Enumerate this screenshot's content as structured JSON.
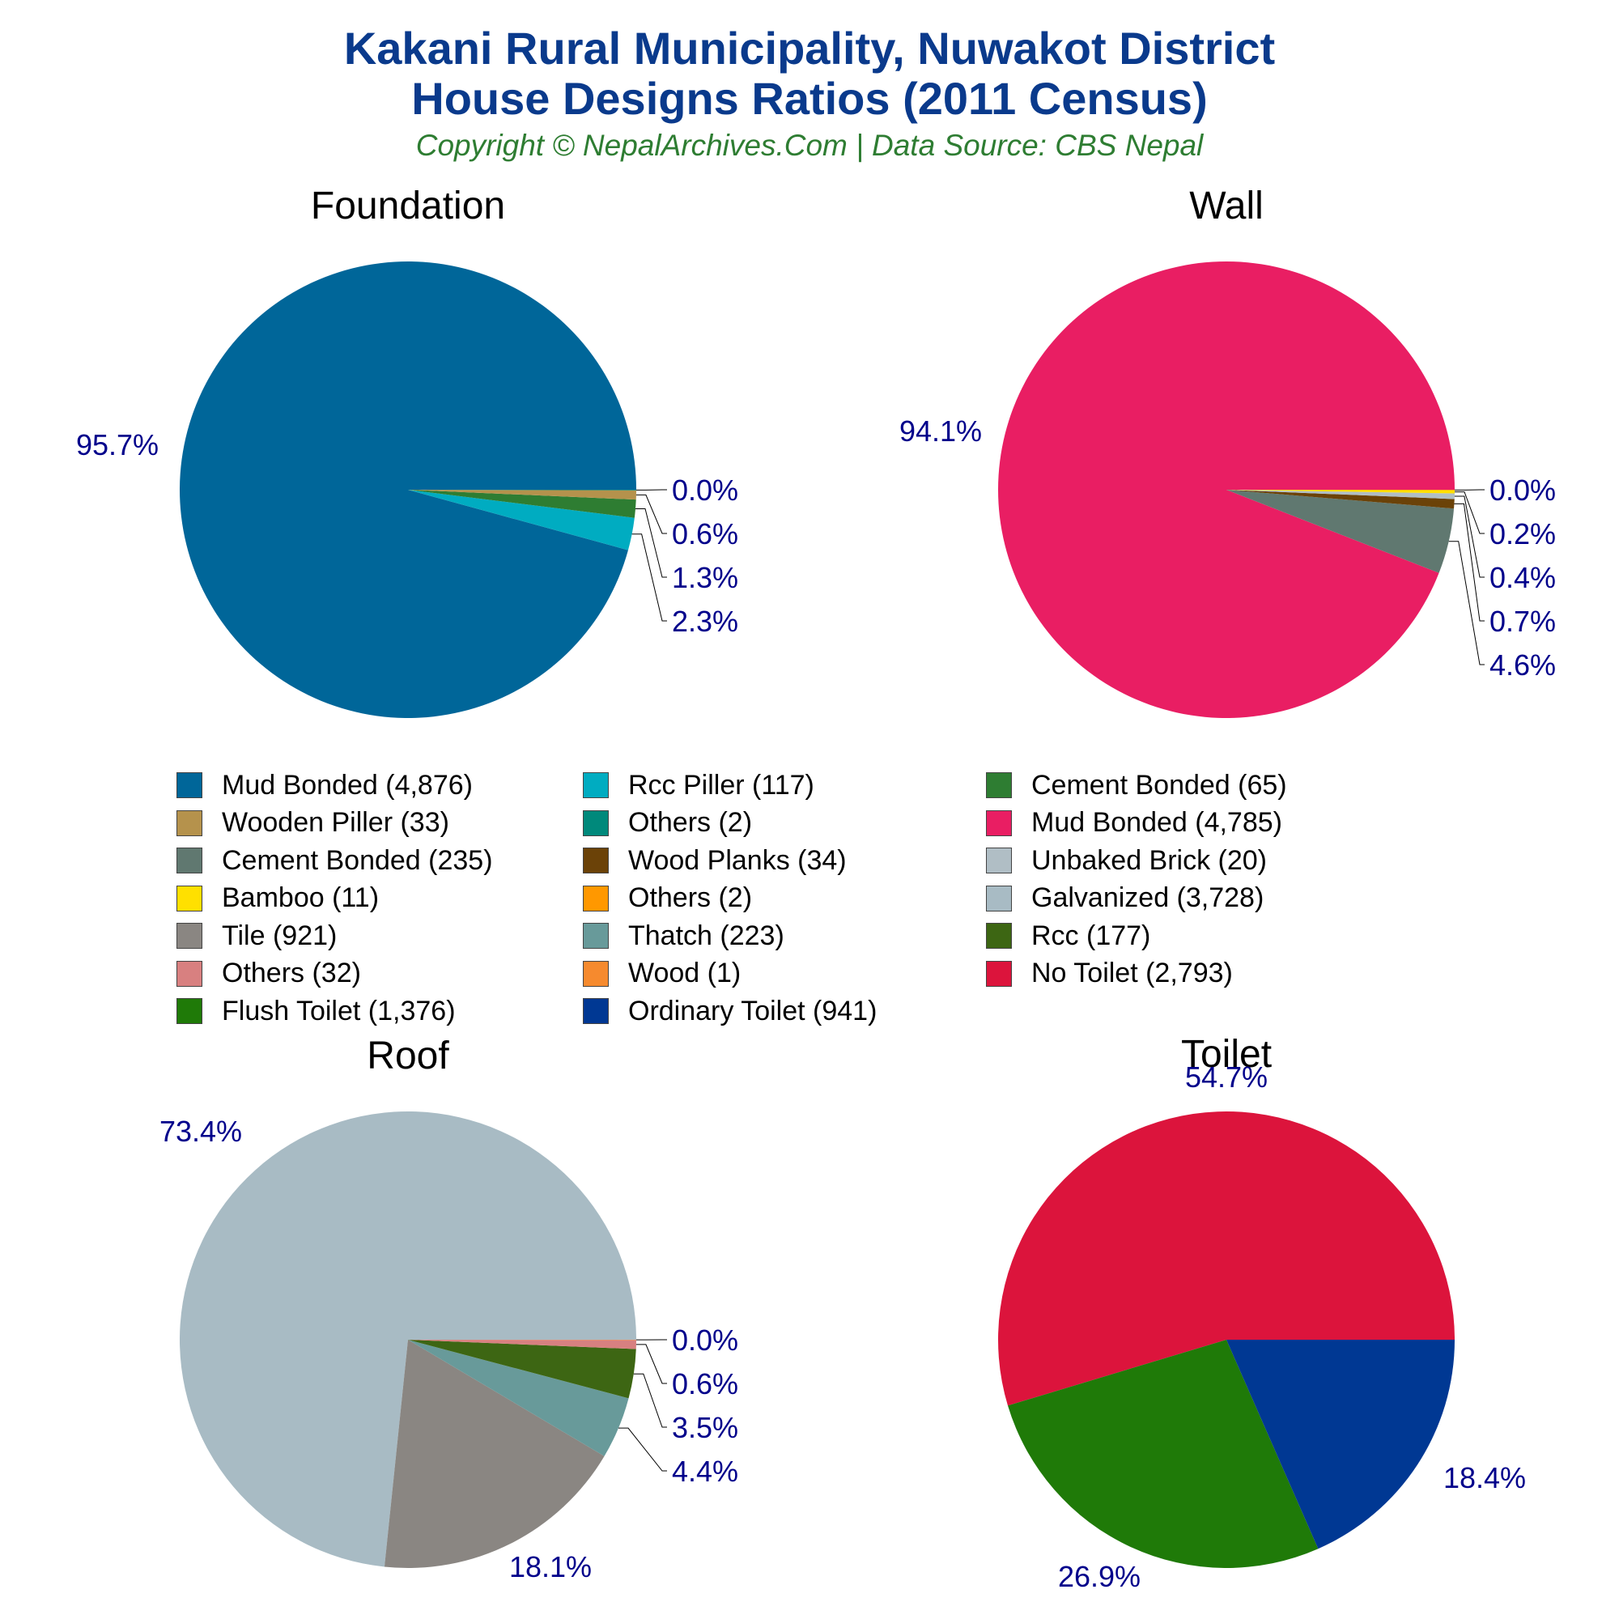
{
  "header": {
    "title_line1": "Kakani Rural Municipality, Nuwakot District",
    "title_line2": "House Designs Ratios (2011 Census)",
    "copyright": "Copyright © NepalArchives.Com | Data Source: CBS Nepal"
  },
  "chart_data": [
    {
      "type": "pie",
      "title": "Foundation",
      "slices": [
        {
          "label": "Mud Bonded",
          "value": 4876,
          "pct_label": "95.7%",
          "color": "#006699"
        },
        {
          "label": "Rcc Piller",
          "value": 117,
          "pct_label": "2.3%",
          "color": "#00acc1"
        },
        {
          "label": "Cement Bonded",
          "value": 65,
          "pct_label": "1.3%",
          "color": "#2e7d32"
        },
        {
          "label": "Wooden Piller",
          "value": 33,
          "pct_label": "0.6%",
          "color": "#b5924c"
        },
        {
          "label": "Others",
          "value": 2,
          "pct_label": "0.0%",
          "color": "#00897b"
        }
      ]
    },
    {
      "type": "pie",
      "title": "Wall",
      "slices": [
        {
          "label": "Mud Bonded",
          "value": 4785,
          "pct_label": "94.1%",
          "color": "#e91e63"
        },
        {
          "label": "Cement Bonded",
          "value": 235,
          "pct_label": "4.6%",
          "color": "#607870"
        },
        {
          "label": "Wood Planks",
          "value": 34,
          "pct_label": "0.7%",
          "color": "#6b4208"
        },
        {
          "label": "Unbaked Brick",
          "value": 20,
          "pct_label": "0.4%",
          "color": "#b0bec5"
        },
        {
          "label": "Bamboo",
          "value": 11,
          "pct_label": "0.2%",
          "color": "#ffe000"
        },
        {
          "label": "Others",
          "value": 2,
          "pct_label": "0.0%",
          "color": "#ff9800"
        }
      ]
    },
    {
      "type": "pie",
      "title": "Roof",
      "slices": [
        {
          "label": "Galvanized",
          "value": 3728,
          "pct_label": "73.4%",
          "color": "#a8bbc4"
        },
        {
          "label": "Tile",
          "value": 921,
          "pct_label": "18.1%",
          "color": "#8a8682"
        },
        {
          "label": "Thatch",
          "value": 223,
          "pct_label": "4.4%",
          "color": "#689a9a"
        },
        {
          "label": "Rcc",
          "value": 177,
          "pct_label": "3.5%",
          "color": "#3d6613"
        },
        {
          "label": "Others",
          "value": 32,
          "pct_label": "0.6%",
          "color": "#d88080"
        },
        {
          "label": "Wood",
          "value": 1,
          "pct_label": "0.0%",
          "color": "#f68a2e"
        }
      ]
    },
    {
      "type": "pie",
      "title": "Toilet",
      "slices": [
        {
          "label": "No Toilet",
          "value": 2793,
          "pct_label": "54.7%",
          "color": "#dc143c"
        },
        {
          "label": "Flush Toilet",
          "value": 1376,
          "pct_label": "26.9%",
          "color": "#1f7a08"
        },
        {
          "label": "Ordinary Toilet",
          "value": 941,
          "pct_label": "18.4%",
          "color": "#003893"
        }
      ]
    }
  ],
  "legend": {
    "items": [
      {
        "label": "Mud Bonded (4,876)",
        "color": "#006699"
      },
      {
        "label": "Rcc Piller (117)",
        "color": "#00acc1"
      },
      {
        "label": "Cement Bonded (65)",
        "color": "#2e7d32"
      },
      {
        "label": "Wooden Piller (33)",
        "color": "#b5924c"
      },
      {
        "label": "Others (2)",
        "color": "#00897b"
      },
      {
        "label": "Mud Bonded (4,785)",
        "color": "#e91e63"
      },
      {
        "label": "Cement Bonded (235)",
        "color": "#607870"
      },
      {
        "label": "Wood Planks (34)",
        "color": "#6b4208"
      },
      {
        "label": "Unbaked Brick (20)",
        "color": "#b0bec5"
      },
      {
        "label": "Bamboo (11)",
        "color": "#ffe000"
      },
      {
        "label": "Others (2)",
        "color": "#ff9800"
      },
      {
        "label": "Galvanized (3,728)",
        "color": "#a8bbc4"
      },
      {
        "label": "Tile (921)",
        "color": "#8a8682"
      },
      {
        "label": "Thatch (223)",
        "color": "#689a9a"
      },
      {
        "label": "Rcc (177)",
        "color": "#3d6613"
      },
      {
        "label": "Others (32)",
        "color": "#d88080"
      },
      {
        "label": "Wood (1)",
        "color": "#f68a2e"
      },
      {
        "label": "No Toilet (2,793)",
        "color": "#dc143c"
      },
      {
        "label": "Flush Toilet (1,376)",
        "color": "#1f7a08"
      },
      {
        "label": "Ordinary Toilet (941)",
        "color": "#003893"
      }
    ]
  }
}
